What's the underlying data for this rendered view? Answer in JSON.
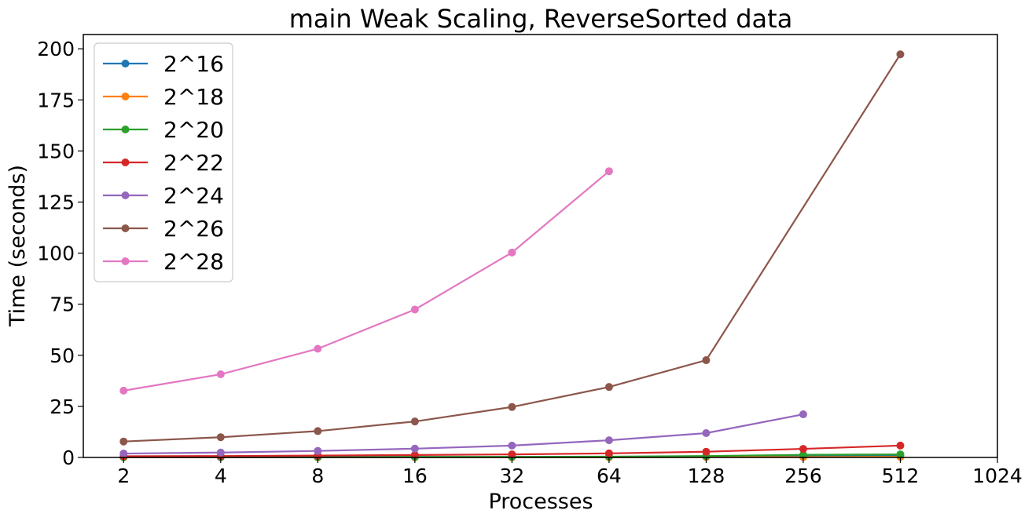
{
  "chart_data": {
    "type": "line",
    "title": "main Weak Scaling, ReverseSorted data",
    "xlabel": "Processes",
    "ylabel": "Time (seconds)",
    "x_scale": "log2",
    "xlim": [
      1.5,
      1024
    ],
    "ylim": [
      0,
      207
    ],
    "x_ticks": [
      2,
      4,
      8,
      16,
      32,
      64,
      128,
      256,
      512,
      1024
    ],
    "x_tick_labels": [
      "2",
      "4",
      "8",
      "16",
      "32",
      "64",
      "128",
      "256",
      "512",
      "1024"
    ],
    "y_ticks": [
      0,
      25,
      50,
      75,
      100,
      125,
      150,
      175,
      200
    ],
    "y_tick_labels": [
      "0",
      "25",
      "50",
      "75",
      "100",
      "125",
      "150",
      "175",
      "200"
    ],
    "grid": false,
    "legend_position": "top-left",
    "series": [
      {
        "name": "2^16",
        "color": "#1f77b4",
        "x": [
          2,
          4,
          8,
          16,
          32,
          64,
          128,
          256,
          512
        ],
        "y": [
          0.1,
          0.1,
          0.1,
          0.1,
          0.2,
          0.3,
          0.5,
          0.8,
          1.0
        ]
      },
      {
        "name": "2^18",
        "color": "#ff7f0e",
        "x": [
          2,
          4,
          8,
          16,
          32,
          64,
          128,
          256,
          512
        ],
        "y": [
          0.1,
          0.1,
          0.1,
          0.1,
          0.1,
          0.1,
          0.2,
          0.2,
          0.3
        ]
      },
      {
        "name": "2^20",
        "color": "#2ca02c",
        "x": [
          2,
          4,
          8,
          16,
          32,
          64,
          128,
          256,
          512
        ],
        "y": [
          0.2,
          0.2,
          0.2,
          0.3,
          0.3,
          0.4,
          0.7,
          1.3,
          1.5
        ]
      },
      {
        "name": "2^22",
        "color": "#d62728",
        "x": [
          2,
          4,
          8,
          16,
          32,
          64,
          128,
          256,
          512
        ],
        "y": [
          0.6,
          0.7,
          0.9,
          1.2,
          1.5,
          2.0,
          2.8,
          4.2,
          5.8
        ]
      },
      {
        "name": "2^24",
        "color": "#9467bd",
        "x": [
          2,
          4,
          8,
          16,
          32,
          64,
          128,
          256
        ],
        "y": [
          1.9,
          2.4,
          3.2,
          4.3,
          5.8,
          8.4,
          11.9,
          21.1
        ]
      },
      {
        "name": "2^26",
        "color": "#8c564b",
        "x": [
          2,
          4,
          8,
          16,
          32,
          64,
          128,
          512
        ],
        "y": [
          7.8,
          9.9,
          12.9,
          17.6,
          24.7,
          34.5,
          47.6,
          197.3
        ]
      },
      {
        "name": "2^28",
        "color": "#e377c2",
        "x": [
          2,
          4,
          8,
          16,
          32,
          64
        ],
        "y": [
          32.7,
          40.7,
          53.2,
          72.4,
          100.3,
          140.1
        ]
      }
    ]
  }
}
